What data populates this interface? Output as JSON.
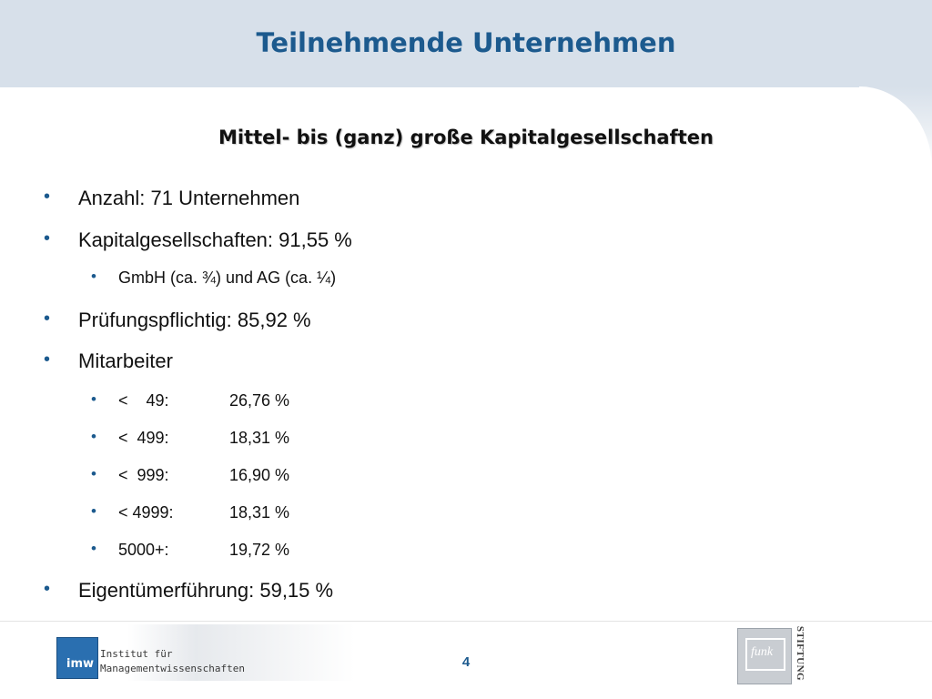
{
  "slide": {
    "title": "Teilnehmende Unternehmen",
    "subtitle": "Mittel- bis (ganz) große Kapitalgesellschaften",
    "bullet_char": "•",
    "bullets": [
      {
        "text": "Anzahl: 71 Unternehmen"
      },
      {
        "text": "Kapitalgesellschaften: 91,55 %"
      },
      {
        "text": "GmbH (ca. ¾) und  AG (ca. ¼)"
      },
      {
        "text": "Prüfungspflichtig: 85,92 %"
      },
      {
        "text": "Mitarbeiter"
      },
      {
        "c1": "<    49:",
        "c2": "26,76 %"
      },
      {
        "c1": "<  499:",
        "c2": "18,31 %"
      },
      {
        "c1": "<  999:",
        "c2": "16,90 %"
      },
      {
        "c1": "< 4999:",
        "c2": "18,31 %"
      },
      {
        "c1": "5000+:",
        "c2": "19,72 %"
      },
      {
        "text": "Eigentümerführung: 59,15 %"
      }
    ]
  },
  "footer": {
    "logo_text": "imw",
    "institute_line1": "Institut für",
    "institute_line2": "Managementwissenschaften",
    "page_number": "4",
    "sponsor_logo_text": "funk",
    "sponsor_label": "STIFTUNG"
  },
  "colors": {
    "title": "#1c5a8e",
    "header_band": "#d7e0ea",
    "bullet": "#1c5a8e"
  }
}
